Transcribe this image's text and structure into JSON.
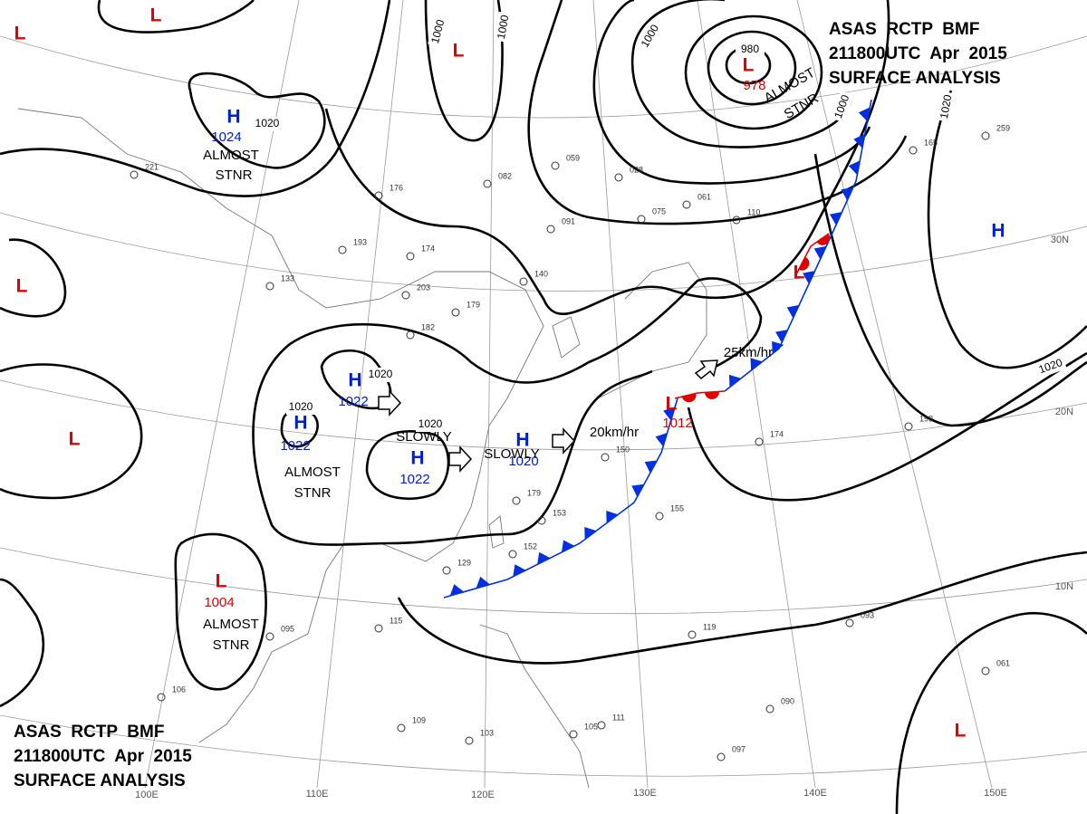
{
  "header": {
    "line1": "ASAS  RCTP  BMF",
    "line2": "211800UTC  Apr  2015",
    "line3": "SURFACE ANALYSIS"
  },
  "centers": [
    {
      "symbol": "L",
      "color": "#e00000"
    },
    {
      "symbol": "L",
      "color": "#e00000"
    },
    {
      "symbol": "H",
      "color": "#0020d0",
      "value": "1024"
    },
    {
      "symbol": "L",
      "color": "#e00000"
    },
    {
      "symbol": "L",
      "color": "#e00000",
      "value": "978"
    },
    {
      "symbol": "H",
      "color": "#0020d0",
      "value": "1022"
    },
    {
      "symbol": "H",
      "color": "#0020d0",
      "value": "1022"
    },
    {
      "symbol": "H",
      "color": "#0020d0",
      "value": "1022"
    },
    {
      "symbol": "H",
      "color": "#0020d0",
      "value": "1020"
    },
    {
      "symbol": "L",
      "color": "#e00000"
    },
    {
      "symbol": "L",
      "color": "#e00000"
    },
    {
      "symbol": "L",
      "color": "#e00000"
    },
    {
      "symbol": "L",
      "color": "#e00000",
      "value": "1012"
    },
    {
      "symbol": "L",
      "color": "#e00000",
      "value": "1004"
    },
    {
      "symbol": "H",
      "color": "#0020d0"
    },
    {
      "symbol": "L",
      "color": "#e00000"
    }
  ],
  "annotations": [
    "ALMOST",
    "STNR",
    "ALMOST",
    "STNR",
    "ALMOST",
    "STNR",
    "ALMOST",
    "STNR",
    "SLOWLY",
    "SLOWLY",
    "25km/hr",
    "20km/hr"
  ],
  "isobar_labels": [
    "1020",
    "1000",
    "1000",
    "1000",
    "1000",
    "980",
    "1020",
    "1020",
    "1020",
    "1020",
    "1020"
  ],
  "graticule_labels": [
    "30N",
    "20N",
    "10N",
    "100E",
    "110E",
    "120E",
    "130E",
    "140E",
    "150E"
  ],
  "stations": [
    "221",
    "193",
    "133",
    "174",
    "203",
    "182",
    "179",
    "140",
    "091",
    "082",
    "176",
    "059",
    "028",
    "075",
    "061",
    "110",
    "150",
    "179",
    "153",
    "152",
    "129",
    "115",
    "095",
    "106",
    "109",
    "103",
    "105",
    "111",
    "119",
    "093",
    "090",
    "097",
    "061",
    "174",
    "155",
    "199",
    "259",
    "165"
  ]
}
